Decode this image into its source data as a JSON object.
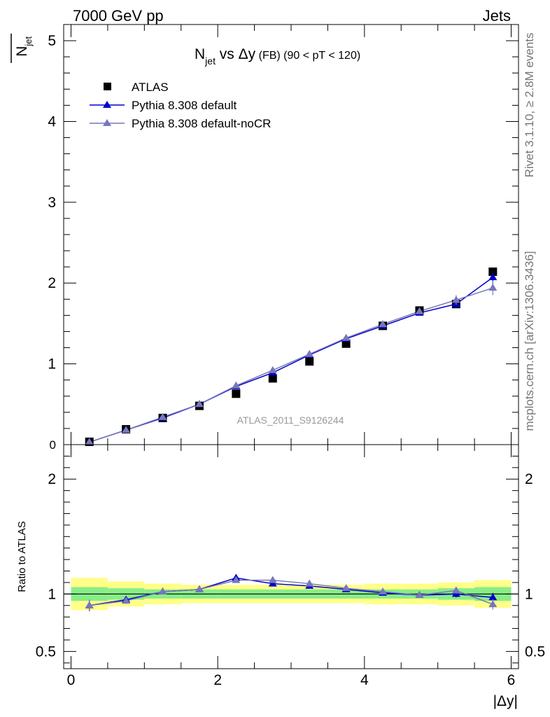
{
  "header": {
    "left_label": "7000 GeV pp",
    "right_label": "Jets",
    "side_version": "Rivet 3.1.10, ≥ 2.8M events",
    "side_url": "mcplots.cern.ch [arXiv:1306.3436]",
    "watermark": "ATLAS_2011_S9126244"
  },
  "chart_data": [
    {
      "type": "scatter",
      "title_main": "N",
      "title_sub": "jet",
      "title_rest": " vs Δy",
      "title_small": " (FB) (90 < pT < 120)",
      "ylabel_main": "N",
      "ylabel_sub": "jet",
      "xlabel": "|Δy|",
      "xlim": [
        -0.1,
        6.1
      ],
      "ylim": [
        0,
        5.2
      ],
      "x_ticks": [
        0,
        2,
        4,
        6
      ],
      "y_ticks": [
        1,
        2,
        3,
        4,
        5
      ],
      "y_zero_label": "0",
      "legend_position": "top-left",
      "x": [
        0.25,
        0.75,
        1.25,
        1.75,
        2.25,
        2.75,
        3.25,
        3.75,
        4.25,
        4.75,
        5.25,
        5.75
      ],
      "series": [
        {
          "name": "ATLAS",
          "marker": "square",
          "color": "#000000",
          "values": [
            0.035,
            0.19,
            0.33,
            0.48,
            0.63,
            0.82,
            1.03,
            1.25,
            1.47,
            1.66,
            1.74,
            2.14
          ]
        },
        {
          "name": "Pythia 8.308 default",
          "marker": "triangle",
          "color": "#0000cc",
          "values": [
            0.031,
            0.18,
            0.33,
            0.5,
            0.72,
            0.89,
            1.11,
            1.31,
            1.47,
            1.63,
            1.74,
            2.07
          ],
          "err": [
            0.004,
            0.006,
            0.008,
            0.01,
            0.012,
            0.014,
            0.016,
            0.02,
            0.025,
            0.03,
            0.05,
            0.08
          ]
        },
        {
          "name": "Pythia 8.308 default-noCR",
          "marker": "triangle",
          "color": "#7777bb",
          "values": [
            0.031,
            0.18,
            0.34,
            0.5,
            0.73,
            0.92,
            1.12,
            1.32,
            1.49,
            1.65,
            1.79,
            1.94
          ],
          "err": [
            0.004,
            0.006,
            0.008,
            0.01,
            0.012,
            0.014,
            0.016,
            0.02,
            0.025,
            0.03,
            0.06,
            0.09
          ]
        }
      ]
    },
    {
      "type": "scatter",
      "ylabel": "Ratio to ATLAS",
      "xlim": [
        -0.1,
        6.1
      ],
      "ylim": [
        0.35,
        2.3
      ],
      "y_ticks": [
        0.5,
        1,
        2
      ],
      "y_tick_labels": [
        "0.5",
        "1",
        "2"
      ],
      "reference_line": 1,
      "x_edges": [
        0,
        0.5,
        1,
        1.5,
        2,
        2.5,
        3,
        3.5,
        4,
        4.5,
        5,
        5.5,
        6
      ],
      "band_outer": {
        "color": "#ffff88",
        "lo": [
          0.86,
          0.89,
          0.91,
          0.92,
          0.92,
          0.92,
          0.92,
          0.92,
          0.91,
          0.91,
          0.9,
          0.88
        ],
        "hi": [
          1.14,
          1.11,
          1.09,
          1.08,
          1.08,
          1.08,
          1.08,
          1.08,
          1.09,
          1.09,
          1.1,
          1.12
        ]
      },
      "band_inner": {
        "color": "#88ee88",
        "lo": [
          0.94,
          0.95,
          0.96,
          0.96,
          0.96,
          0.96,
          0.96,
          0.96,
          0.96,
          0.96,
          0.95,
          0.94
        ],
        "hi": [
          1.06,
          1.05,
          1.04,
          1.04,
          1.04,
          1.04,
          1.04,
          1.04,
          1.04,
          1.04,
          1.05,
          1.06
        ]
      },
      "x": [
        0.25,
        0.75,
        1.25,
        1.75,
        2.25,
        2.75,
        3.25,
        3.75,
        4.25,
        4.75,
        5.25,
        5.75
      ],
      "series": [
        {
          "name": "Pythia 8.308 default",
          "marker": "triangle",
          "color": "#0000cc",
          "values": [
            0.9,
            0.95,
            1.02,
            1.04,
            1.14,
            1.09,
            1.07,
            1.04,
            1.01,
            0.99,
            1.0,
            0.97
          ],
          "err": [
            0.05,
            0.025,
            0.012,
            0.01,
            0.01,
            0.01,
            0.01,
            0.01,
            0.012,
            0.015,
            0.03,
            0.04
          ]
        },
        {
          "name": "Pythia 8.308 default-noCR",
          "marker": "triangle",
          "color": "#7777bb",
          "values": [
            0.9,
            0.94,
            1.02,
            1.04,
            1.12,
            1.12,
            1.09,
            1.05,
            1.02,
            0.99,
            1.03,
            0.91
          ],
          "err": [
            0.05,
            0.025,
            0.012,
            0.01,
            0.01,
            0.01,
            0.01,
            0.01,
            0.012,
            0.015,
            0.03,
            0.045
          ]
        }
      ]
    }
  ]
}
